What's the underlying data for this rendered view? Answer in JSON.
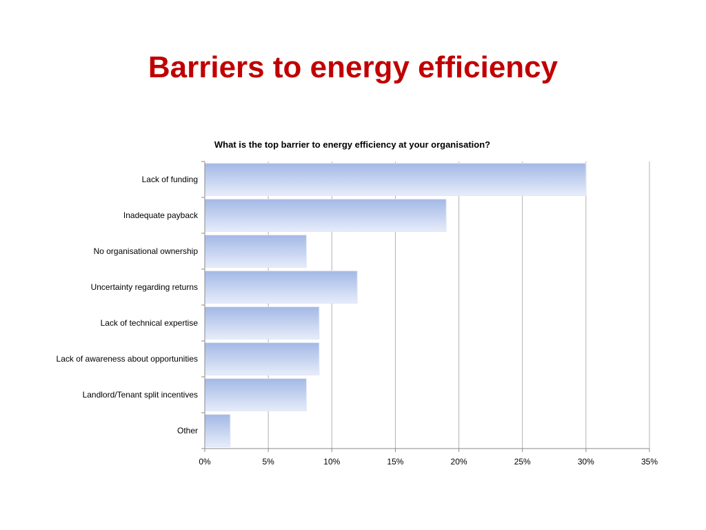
{
  "slide": {
    "title": "Barriers to energy efficiency"
  },
  "chart_data": {
    "type": "bar",
    "orientation": "horizontal",
    "title": "What is the top barrier to energy efficiency at your organisation?",
    "categories": [
      "Lack of funding",
      "Inadequate payback",
      "No organisational ownership",
      "Uncertainty regarding returns",
      "Lack of technical expertise",
      "Lack of awareness about opportunities",
      "Landlord/Tenant split incentives",
      "Other"
    ],
    "values": [
      30,
      19,
      8,
      12,
      9,
      9,
      8,
      2
    ],
    "value_unit": "%",
    "xlim": [
      0,
      35
    ],
    "xticks": [
      0,
      5,
      10,
      15,
      20,
      25,
      30,
      35
    ],
    "xtick_labels": [
      "0%",
      "5%",
      "10%",
      "15%",
      "20%",
      "25%",
      "30%",
      "35%"
    ],
    "xlabel": "",
    "ylabel": "",
    "grid": "vertical",
    "legend": "none",
    "colors": {
      "bar_top": "#a3b8e6",
      "bar_bottom": "#e6ecfa",
      "grid": "#b0b0b0",
      "axis": "#888888"
    }
  }
}
